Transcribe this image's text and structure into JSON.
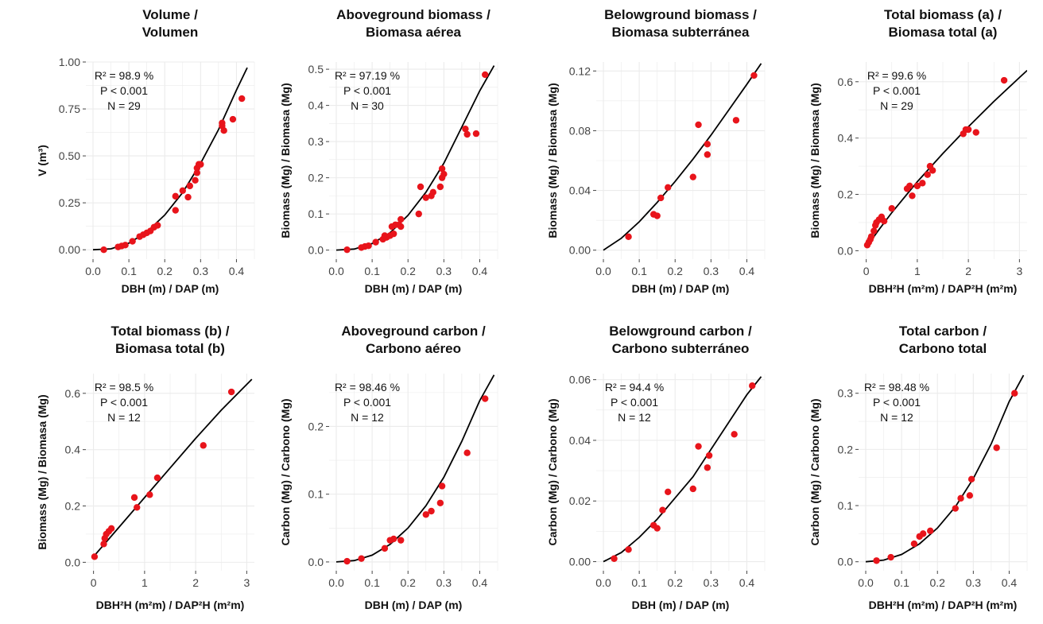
{
  "colors": {
    "point": "#e8141b",
    "curve": "#000000",
    "grid": "#ebebeb",
    "tick": "#444444"
  },
  "chart_data": [
    {
      "type": "scatter",
      "title": [
        "Volume /",
        "Volumen"
      ],
      "xlabel": "DBH (m) / DAP (m)",
      "ylabel": "V (m³)",
      "xlim": [
        -0.02,
        0.45
      ],
      "ylim": [
        -0.05,
        1.0
      ],
      "xticks": [
        0.0,
        0.1,
        0.2,
        0.3,
        0.4
      ],
      "xtick_labels": [
        "0.0",
        "0.1",
        "0.2",
        "0.3",
        "0.4"
      ],
      "yticks": [
        0.0,
        0.25,
        0.5,
        0.75,
        1.0
      ],
      "ytick_labels": [
        "0.00",
        "0.25",
        "0.50",
        "0.75",
        "1.00"
      ],
      "annotations": [
        "R² = 98.9 %",
        "P < 0.001",
        "N = 29"
      ],
      "points": [
        [
          0.03,
          0.0
        ],
        [
          0.07,
          0.015
        ],
        [
          0.08,
          0.02
        ],
        [
          0.09,
          0.025
        ],
        [
          0.11,
          0.045
        ],
        [
          0.13,
          0.07
        ],
        [
          0.14,
          0.08
        ],
        [
          0.15,
          0.09
        ],
        [
          0.16,
          0.1
        ],
        [
          0.17,
          0.12
        ],
        [
          0.18,
          0.13
        ],
        [
          0.23,
          0.21
        ],
        [
          0.23,
          0.285
        ],
        [
          0.25,
          0.315
        ],
        [
          0.265,
          0.28
        ],
        [
          0.27,
          0.34
        ],
        [
          0.285,
          0.37
        ],
        [
          0.29,
          0.41
        ],
        [
          0.29,
          0.435
        ],
        [
          0.295,
          0.455
        ],
        [
          0.3,
          0.455
        ],
        [
          0.36,
          0.66
        ],
        [
          0.36,
          0.675
        ],
        [
          0.365,
          0.635
        ],
        [
          0.39,
          0.695
        ],
        [
          0.415,
          0.805
        ]
      ],
      "curve": [
        [
          0.0,
          0.0
        ],
        [
          0.05,
          0.005
        ],
        [
          0.1,
          0.035
        ],
        [
          0.15,
          0.095
        ],
        [
          0.2,
          0.185
        ],
        [
          0.25,
          0.305
        ],
        [
          0.3,
          0.46
        ],
        [
          0.35,
          0.64
        ],
        [
          0.4,
          0.85
        ],
        [
          0.43,
          0.97
        ]
      ]
    },
    {
      "type": "scatter",
      "title": [
        "Aboveground biomass /",
        "Biomasa aérea"
      ],
      "xlabel": "DBH (m) / DAP (m)",
      "ylabel": "Biomass (Mg) / Biomasa (Mg)",
      "xlim": [
        -0.02,
        0.45
      ],
      "ylim": [
        -0.025,
        0.52
      ],
      "xticks": [
        0.0,
        0.1,
        0.2,
        0.3,
        0.4
      ],
      "xtick_labels": [
        "0.0",
        "0.1",
        "0.2",
        "0.3",
        "0.4"
      ],
      "yticks": [
        0.0,
        0.1,
        0.2,
        0.3,
        0.4,
        0.5
      ],
      "ytick_labels": [
        "0.0",
        "0.1",
        "0.2",
        "0.3",
        "0.4",
        "0.5"
      ],
      "annotations": [
        "R² = 97.19 %",
        "P < 0.001",
        "N = 30"
      ],
      "points": [
        [
          0.03,
          0.001
        ],
        [
          0.07,
          0.007
        ],
        [
          0.08,
          0.01
        ],
        [
          0.09,
          0.012
        ],
        [
          0.11,
          0.022
        ],
        [
          0.13,
          0.03
        ],
        [
          0.135,
          0.04
        ],
        [
          0.14,
          0.035
        ],
        [
          0.15,
          0.04
        ],
        [
          0.155,
          0.065
        ],
        [
          0.16,
          0.045
        ],
        [
          0.165,
          0.07
        ],
        [
          0.175,
          0.07
        ],
        [
          0.18,
          0.085
        ],
        [
          0.18,
          0.065
        ],
        [
          0.23,
          0.1
        ],
        [
          0.235,
          0.175
        ],
        [
          0.25,
          0.145
        ],
        [
          0.265,
          0.15
        ],
        [
          0.27,
          0.16
        ],
        [
          0.29,
          0.175
        ],
        [
          0.295,
          0.2
        ],
        [
          0.295,
          0.225
        ],
        [
          0.3,
          0.21
        ],
        [
          0.36,
          0.335
        ],
        [
          0.365,
          0.32
        ],
        [
          0.39,
          0.322
        ],
        [
          0.415,
          0.485
        ]
      ],
      "curve": [
        [
          0.0,
          0.0
        ],
        [
          0.05,
          0.003
        ],
        [
          0.1,
          0.018
        ],
        [
          0.15,
          0.048
        ],
        [
          0.2,
          0.096
        ],
        [
          0.25,
          0.16
        ],
        [
          0.3,
          0.24
        ],
        [
          0.35,
          0.34
        ],
        [
          0.4,
          0.44
        ],
        [
          0.44,
          0.51
        ]
      ]
    },
    {
      "type": "scatter",
      "title": [
        "Belowground biomass /",
        "Biomasa subterránea"
      ],
      "xlabel": "DBH (m) / DAP (m)",
      "ylabel": "Biomass (Mg) / Biomasa (Mg)",
      "xlim": [
        -0.02,
        0.45
      ],
      "ylim": [
        -0.006,
        0.126
      ],
      "xticks": [
        0.0,
        0.1,
        0.2,
        0.3,
        0.4
      ],
      "xtick_labels": [
        "0.0",
        "0.1",
        "0.2",
        "0.3",
        "0.4"
      ],
      "yticks": [
        0.0,
        0.04,
        0.08,
        0.12
      ],
      "ytick_labels": [
        "0.00",
        "0.04",
        "0.08",
        "0.12"
      ],
      "annotations": [],
      "points": [
        [
          0.07,
          0.009
        ],
        [
          0.14,
          0.024
        ],
        [
          0.15,
          0.023
        ],
        [
          0.16,
          0.035
        ],
        [
          0.18,
          0.042
        ],
        [
          0.25,
          0.049
        ],
        [
          0.265,
          0.084
        ],
        [
          0.29,
          0.064
        ],
        [
          0.29,
          0.071
        ],
        [
          0.37,
          0.087
        ],
        [
          0.42,
          0.117
        ]
      ],
      "curve": [
        [
          0.0,
          0.0
        ],
        [
          0.05,
          0.008
        ],
        [
          0.1,
          0.019
        ],
        [
          0.15,
          0.032
        ],
        [
          0.2,
          0.046
        ],
        [
          0.25,
          0.061
        ],
        [
          0.3,
          0.077
        ],
        [
          0.35,
          0.094
        ],
        [
          0.4,
          0.111
        ],
        [
          0.44,
          0.125
        ]
      ]
    },
    {
      "type": "scatter",
      "title": [
        "Total biomass (a) /",
        "Biomasa total (a)"
      ],
      "xlabel": "DBH²H (m²m) / DAP²H (m²m)",
      "ylabel": "Biomass (Mg) / Biomasa (Mg)",
      "xlim": [
        -0.15,
        3.15
      ],
      "ylim": [
        -0.03,
        0.67
      ],
      "xticks": [
        0,
        1,
        2,
        3
      ],
      "xtick_labels": [
        "0",
        "1",
        "2",
        "3"
      ],
      "yticks": [
        0.0,
        0.2,
        0.4,
        0.6
      ],
      "ytick_labels": [
        "0.0",
        "0.2",
        "0.4",
        "0.6"
      ],
      "annotations": [
        "R² = 99.6 %",
        "P < 0.001",
        "N = 29"
      ],
      "points": [
        [
          0.02,
          0.02
        ],
        [
          0.05,
          0.03
        ],
        [
          0.08,
          0.04
        ],
        [
          0.1,
          0.05
        ],
        [
          0.15,
          0.07
        ],
        [
          0.18,
          0.09
        ],
        [
          0.2,
          0.1
        ],
        [
          0.25,
          0.11
        ],
        [
          0.3,
          0.12
        ],
        [
          0.35,
          0.105
        ],
        [
          0.5,
          0.15
        ],
        [
          0.8,
          0.22
        ],
        [
          0.85,
          0.23
        ],
        [
          0.9,
          0.195
        ],
        [
          1.0,
          0.23
        ],
        [
          1.1,
          0.24
        ],
        [
          1.2,
          0.27
        ],
        [
          1.25,
          0.3
        ],
        [
          1.3,
          0.285
        ],
        [
          1.9,
          0.415
        ],
        [
          1.95,
          0.43
        ],
        [
          2.0,
          0.43
        ],
        [
          2.15,
          0.42
        ],
        [
          2.7,
          0.605
        ]
      ],
      "curve": [
        [
          0.0,
          0.012
        ],
        [
          0.25,
          0.075
        ],
        [
          0.5,
          0.135
        ],
        [
          1.0,
          0.245
        ],
        [
          1.5,
          0.345
        ],
        [
          2.0,
          0.44
        ],
        [
          2.5,
          0.53
        ],
        [
          3.0,
          0.615
        ],
        [
          3.15,
          0.64
        ]
      ]
    },
    {
      "type": "scatter",
      "title": [
        "Total biomass (b) /",
        "Biomasa total (b)"
      ],
      "xlabel": "DBH²H (m²m) / DAP²H (m²m)",
      "ylabel": "Biomass (Mg) / Biomasa (Mg)",
      "xlim": [
        -0.15,
        3.15
      ],
      "ylim": [
        -0.03,
        0.67
      ],
      "xticks": [
        0,
        1,
        2,
        3
      ],
      "xtick_labels": [
        "0",
        "1",
        "2",
        "3"
      ],
      "yticks": [
        0.0,
        0.2,
        0.4,
        0.6
      ],
      "ytick_labels": [
        "0.0",
        "0.2",
        "0.4",
        "0.6"
      ],
      "annotations": [
        "R² = 98.5 %",
        "P < 0.001",
        "N = 12"
      ],
      "points": [
        [
          0.02,
          0.02
        ],
        [
          0.2,
          0.065
        ],
        [
          0.22,
          0.085
        ],
        [
          0.25,
          0.1
        ],
        [
          0.3,
          0.11
        ],
        [
          0.35,
          0.12
        ],
        [
          0.8,
          0.23
        ],
        [
          0.85,
          0.195
        ],
        [
          1.1,
          0.24
        ],
        [
          1.25,
          0.3
        ],
        [
          2.15,
          0.415
        ],
        [
          2.7,
          0.605
        ]
      ],
      "curve": [
        [
          0.0,
          0.02
        ],
        [
          0.5,
          0.125
        ],
        [
          1.0,
          0.23
        ],
        [
          1.5,
          0.335
        ],
        [
          2.0,
          0.44
        ],
        [
          2.5,
          0.54
        ],
        [
          3.1,
          0.65
        ]
      ]
    },
    {
      "type": "scatter",
      "title": [
        "Aboveground carbon /",
        "Carbono aéreo"
      ],
      "xlabel": "DBH (m) / DAP (m)",
      "ylabel": "Carbon (Mg) / Carbono (Mg)",
      "xlim": [
        -0.02,
        0.45
      ],
      "ylim": [
        -0.013,
        0.278
      ],
      "xticks": [
        0.0,
        0.1,
        0.2,
        0.3,
        0.4
      ],
      "xtick_labels": [
        "0.0",
        "0.1",
        "0.2",
        "0.3",
        "0.4"
      ],
      "yticks": [
        0.0,
        0.1,
        0.2
      ],
      "ytick_labels": [
        "0.0",
        "0.1",
        "0.2"
      ],
      "annotations": [
        "R² = 98.46 %",
        "P < 0.001",
        "N = 12"
      ],
      "points": [
        [
          0.03,
          0.001
        ],
        [
          0.07,
          0.005
        ],
        [
          0.135,
          0.02
        ],
        [
          0.15,
          0.032
        ],
        [
          0.16,
          0.034
        ],
        [
          0.18,
          0.032
        ],
        [
          0.25,
          0.07
        ],
        [
          0.265,
          0.075
        ],
        [
          0.29,
          0.087
        ],
        [
          0.295,
          0.112
        ],
        [
          0.365,
          0.161
        ],
        [
          0.415,
          0.241
        ]
      ],
      "curve": [
        [
          0.0,
          0.0
        ],
        [
          0.05,
          0.002
        ],
        [
          0.1,
          0.01
        ],
        [
          0.15,
          0.026
        ],
        [
          0.2,
          0.05
        ],
        [
          0.25,
          0.083
        ],
        [
          0.3,
          0.125
        ],
        [
          0.35,
          0.178
        ],
        [
          0.4,
          0.238
        ],
        [
          0.44,
          0.276
        ]
      ]
    },
    {
      "type": "scatter",
      "title": [
        "Belowground carbon /",
        "Carbono subterráneo"
      ],
      "xlabel": "DBH (m) / DAP (m)",
      "ylabel": "Carbon (Mg) / Carbono (Mg)",
      "xlim": [
        -0.02,
        0.45
      ],
      "ylim": [
        -0.003,
        0.062
      ],
      "xticks": [
        0.0,
        0.1,
        0.2,
        0.3,
        0.4
      ],
      "xtick_labels": [
        "0.0",
        "0.1",
        "0.2",
        "0.3",
        "0.4"
      ],
      "yticks": [
        0.0,
        0.02,
        0.04,
        0.06
      ],
      "ytick_labels": [
        "0.00",
        "0.02",
        "0.04",
        "0.06"
      ],
      "annotations": [
        "R² = 94.4 %",
        "P < 0.001",
        "N = 12"
      ],
      "points": [
        [
          0.03,
          0.001
        ],
        [
          0.07,
          0.004
        ],
        [
          0.14,
          0.012
        ],
        [
          0.15,
          0.011
        ],
        [
          0.165,
          0.017
        ],
        [
          0.18,
          0.023
        ],
        [
          0.25,
          0.024
        ],
        [
          0.265,
          0.038
        ],
        [
          0.29,
          0.031
        ],
        [
          0.295,
          0.035
        ],
        [
          0.365,
          0.042
        ],
        [
          0.415,
          0.058
        ]
      ],
      "curve": [
        [
          0.0,
          0.0
        ],
        [
          0.05,
          0.003
        ],
        [
          0.1,
          0.008
        ],
        [
          0.15,
          0.014
        ],
        [
          0.2,
          0.021
        ],
        [
          0.25,
          0.028
        ],
        [
          0.3,
          0.037
        ],
        [
          0.35,
          0.046
        ],
        [
          0.4,
          0.055
        ],
        [
          0.44,
          0.061
        ]
      ]
    },
    {
      "type": "scatter",
      "title": [
        "Total carbon /",
        "Carbono total"
      ],
      "xlabel": "DBH²H (m²m) / DAP²H (m²m)",
      "ylabel": "Carbon (Mg) / Carbono (Mg)",
      "xlim": [
        -0.02,
        0.45
      ],
      "ylim": [
        -0.016,
        0.335
      ],
      "xticks": [
        0.0,
        0.1,
        0.2,
        0.3,
        0.4
      ],
      "xtick_labels": [
        "0.0",
        "0.1",
        "0.2",
        "0.3",
        "0.4"
      ],
      "yticks": [
        0.0,
        0.1,
        0.2,
        0.3
      ],
      "ytick_labels": [
        "0.0",
        "0.1",
        "0.2",
        "0.3"
      ],
      "annotations": [
        "R² = 98.48 %",
        "P < 0.001",
        "N = 12"
      ],
      "points": [
        [
          0.03,
          0.002
        ],
        [
          0.07,
          0.008
        ],
        [
          0.135,
          0.032
        ],
        [
          0.15,
          0.045
        ],
        [
          0.16,
          0.05
        ],
        [
          0.18,
          0.055
        ],
        [
          0.25,
          0.095
        ],
        [
          0.265,
          0.113
        ],
        [
          0.29,
          0.118
        ],
        [
          0.295,
          0.147
        ],
        [
          0.365,
          0.203
        ],
        [
          0.415,
          0.3
        ]
      ],
      "curve": [
        [
          0.0,
          0.0
        ],
        [
          0.05,
          0.003
        ],
        [
          0.1,
          0.013
        ],
        [
          0.15,
          0.032
        ],
        [
          0.2,
          0.06
        ],
        [
          0.25,
          0.098
        ],
        [
          0.3,
          0.148
        ],
        [
          0.35,
          0.21
        ],
        [
          0.4,
          0.285
        ],
        [
          0.44,
          0.332
        ]
      ]
    }
  ]
}
